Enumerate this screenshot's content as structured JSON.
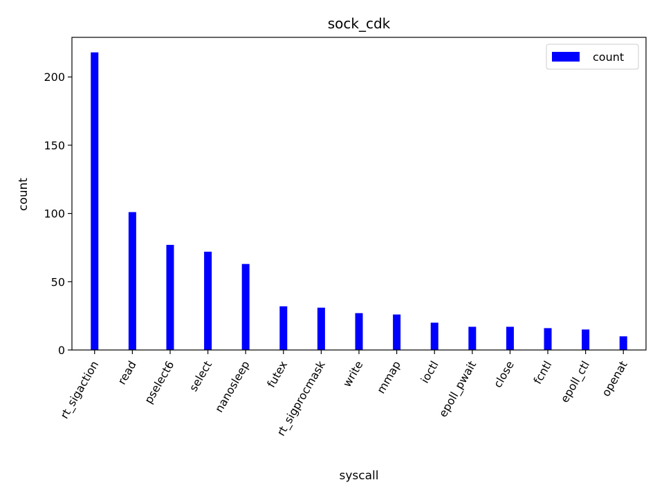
{
  "chart_data": {
    "type": "bar",
    "title": "sock_cdk",
    "xlabel": "syscall",
    "ylabel": "count",
    "categories": [
      "rt_sigaction",
      "read",
      "pselect6",
      "select",
      "nanosleep",
      "futex",
      "rt_sigprocmask",
      "write",
      "mmap",
      "ioctl",
      "epoll_pwait",
      "close",
      "fcntl",
      "epoll_ctl",
      "openat"
    ],
    "series": [
      {
        "name": "count",
        "color": "#0000ff",
        "values": [
          218,
          101,
          77,
          72,
          63,
          32,
          31,
          27,
          26,
          20,
          17,
          17,
          16,
          15,
          10
        ]
      }
    ],
    "ylim": [
      0,
      229
    ],
    "yticks": [
      0,
      50,
      100,
      150,
      200
    ],
    "legend": {
      "position": "top-right",
      "label": "count"
    },
    "grid": false
  }
}
